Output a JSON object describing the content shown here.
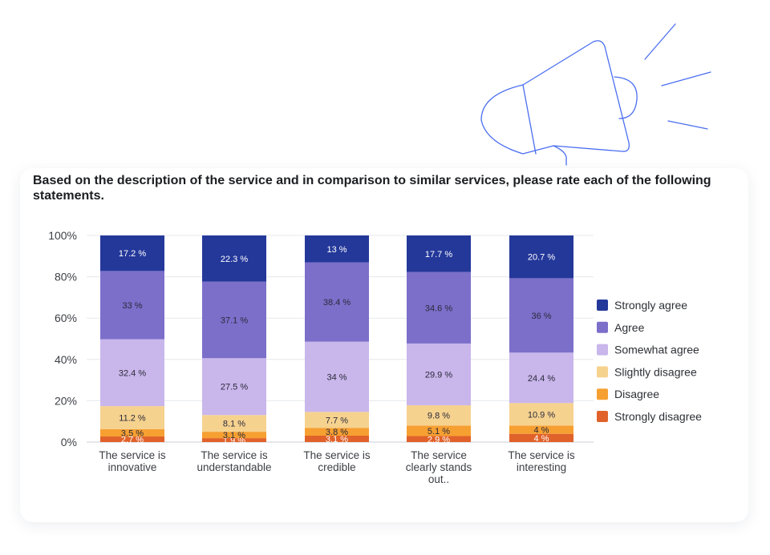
{
  "title": "Based on the description of the service and in comparison to similar services, please rate each of the following statements.",
  "icon": "megaphone-icon",
  "colors": {
    "Strongly agree": "#24389a",
    "Agree": "#7b6fca",
    "Somewhat agree": "#c9b6eb",
    "Slightly disagree": "#f6d28f",
    "Disagree": "#f6a032",
    "Strongly disagree": "#e0622a"
  },
  "chart_data": {
    "type": "bar",
    "stacked": true,
    "title": "Based on the description of the service and in comparison to similar services, please rate each of the following statements.",
    "categories": [
      [
        "The service is",
        "innovative"
      ],
      [
        "The service is",
        "understandable"
      ],
      [
        "The service is",
        "credible"
      ],
      [
        "The service",
        "clearly stands",
        "out.."
      ],
      [
        "The service is",
        "interesting"
      ]
    ],
    "series": [
      {
        "name": "Strongly disagree",
        "values": [
          2.7,
          1.9,
          3.1,
          2.9,
          4
        ]
      },
      {
        "name": "Disagree",
        "values": [
          3.5,
          3.1,
          3.8,
          5.1,
          4
        ]
      },
      {
        "name": "Slightly disagree",
        "values": [
          11.2,
          8.1,
          7.7,
          9.8,
          10.9
        ]
      },
      {
        "name": "Somewhat agree",
        "values": [
          32.4,
          27.5,
          34,
          29.9,
          24.4
        ]
      },
      {
        "name": "Agree",
        "values": [
          33,
          37.1,
          38.4,
          34.6,
          36
        ]
      },
      {
        "name": "Strongly agree",
        "values": [
          17.2,
          22.3,
          13,
          17.7,
          20.7
        ]
      }
    ],
    "legend_order": [
      "Strongly agree",
      "Agree",
      "Somewhat agree",
      "Slightly disagree",
      "Disagree",
      "Strongly disagree"
    ],
    "value_suffix": " %",
    "yticks": [
      "0%",
      "20%",
      "40%",
      "60%",
      "80%",
      "100%"
    ],
    "ylim": [
      0,
      100
    ],
    "grid": true,
    "legend_position": "right"
  }
}
